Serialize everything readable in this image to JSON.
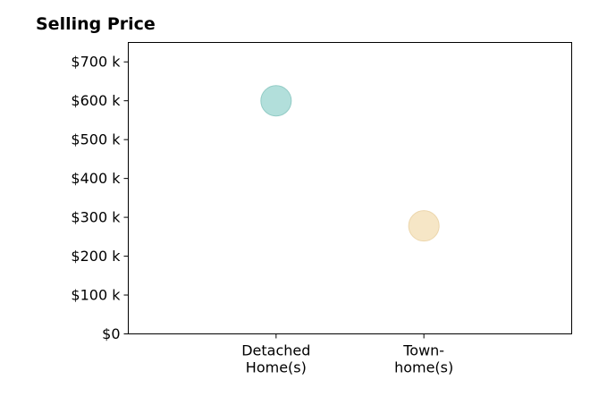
{
  "chart_data": {
    "type": "scatter",
    "title": "Selling Price",
    "xlabel": "",
    "ylabel": "",
    "categories": [
      [
        "Detached",
        "Home(s)"
      ],
      [
        "Town-",
        "home(s)"
      ]
    ],
    "points": [
      {
        "category_index": 0,
        "value": 600000,
        "color": "#b2dfdb"
      },
      {
        "category_index": 1,
        "value": 278000,
        "color": "#f6e6c6"
      }
    ],
    "point_stroke_colors": [
      "#92cbc5",
      "#ecd6ac"
    ],
    "y_ticks": [
      {
        "value": 0,
        "label": "$0"
      },
      {
        "value": 100000,
        "label": "$100 k"
      },
      {
        "value": 200000,
        "label": "$200 k"
      },
      {
        "value": 300000,
        "label": "$300 k"
      },
      {
        "value": 400000,
        "label": "$400 k"
      },
      {
        "value": 500000,
        "label": "$500 k"
      },
      {
        "value": 600000,
        "label": "$600 k"
      },
      {
        "value": 700000,
        "label": "$700 k"
      }
    ],
    "ylim": [
      0,
      750000
    ],
    "x_range": [
      -1,
      2
    ],
    "grid": false,
    "legend": "none"
  }
}
